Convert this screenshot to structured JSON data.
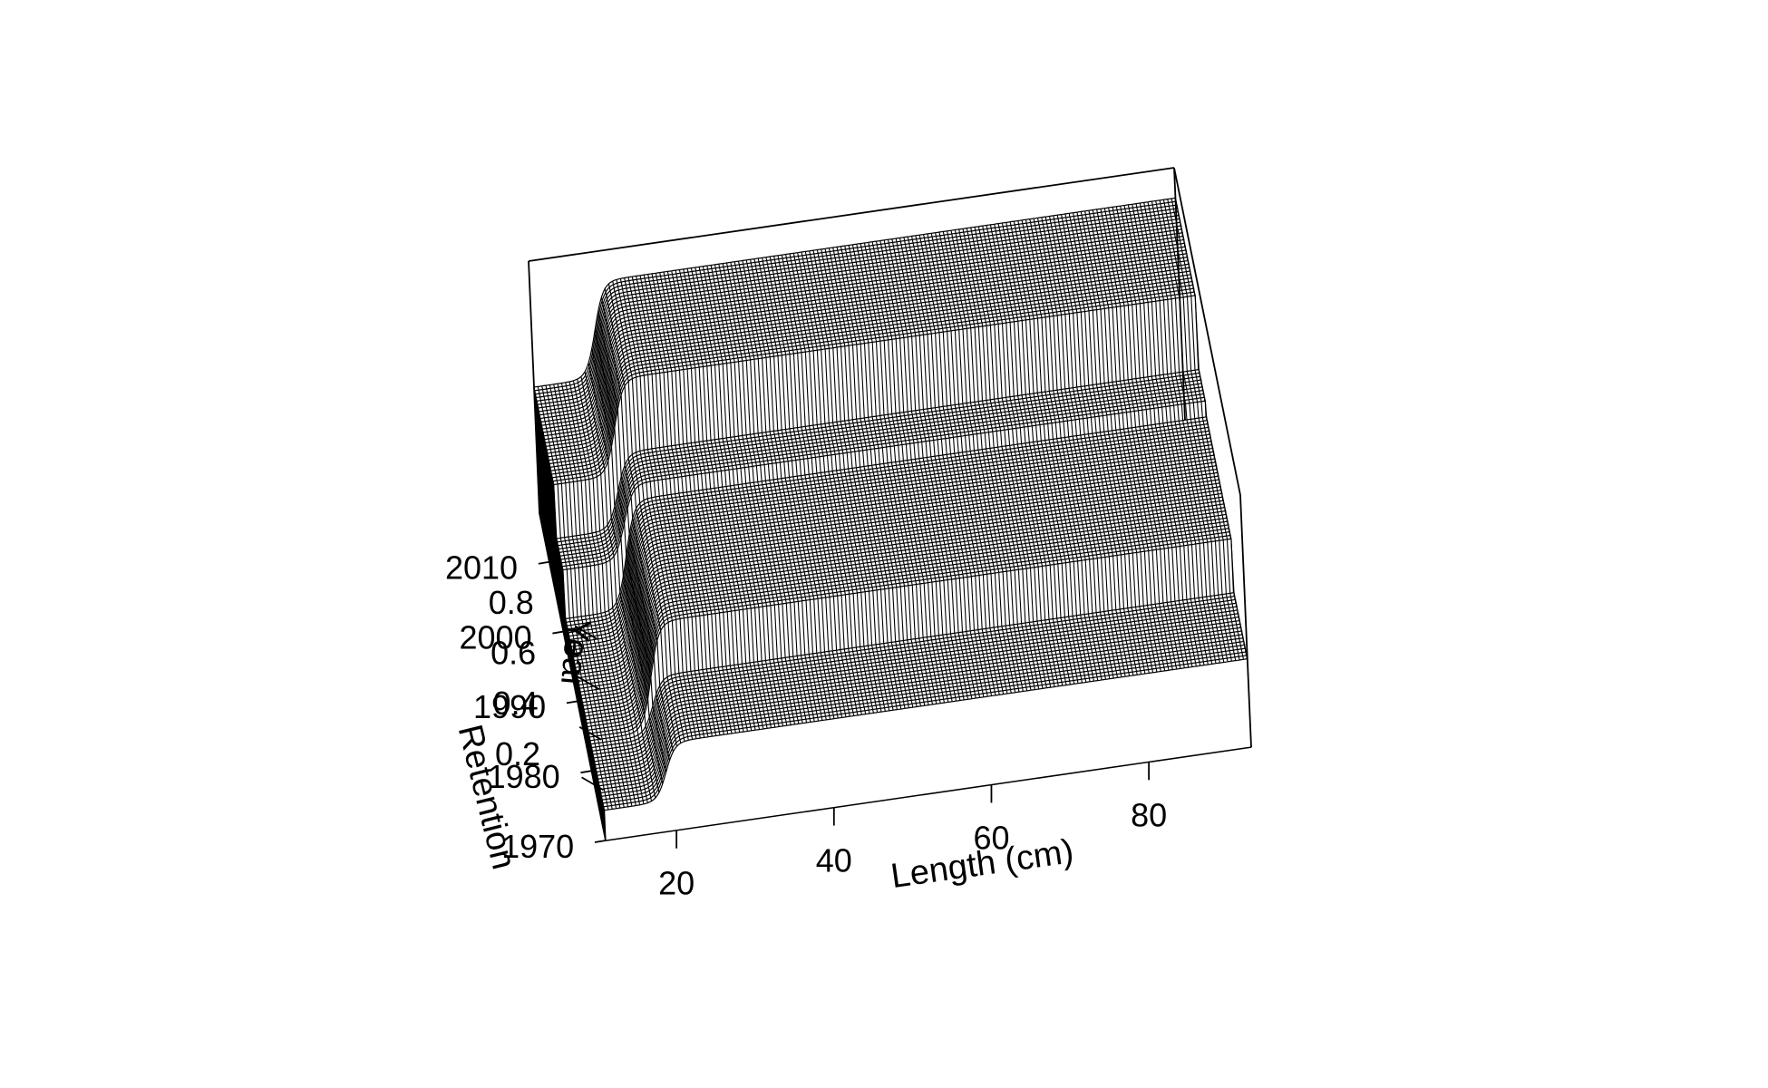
{
  "chart_data": {
    "type": "surface3d",
    "title": "",
    "xlabel": "Length (cm)",
    "ylabel": "Year",
    "zlabel": "Retention",
    "x_ticks": [
      "20",
      "40",
      "60",
      "80"
    ],
    "y_ticks": [
      "1970",
      "1980",
      "1990",
      "2000",
      "2010"
    ],
    "z_ticks": [
      "0.2",
      "0.4",
      "0.6",
      "0.8"
    ],
    "xlim": [
      11,
      93
    ],
    "ylim": [
      1970,
      2017
    ],
    "zlim": [
      0,
      1
    ],
    "surface": {
      "description_free": true,
      "curve": "logistic",
      "inflection_length_cm": 19,
      "slope": 1.6,
      "periods": [
        {
          "years": [
            1970,
            1980
          ],
          "min_retention": 0.12,
          "max_retention": 0.35
        },
        {
          "years": [
            1980,
            1998
          ],
          "min_retention": 0.12,
          "max_retention": 0.55
        },
        {
          "years": [
            1998,
            2003
          ],
          "min_retention": 0.3,
          "max_retention": 0.6
        },
        {
          "years": [
            2003,
            2017
          ],
          "min_retention": 0.5,
          "max_retention": 0.88
        }
      ]
    }
  }
}
